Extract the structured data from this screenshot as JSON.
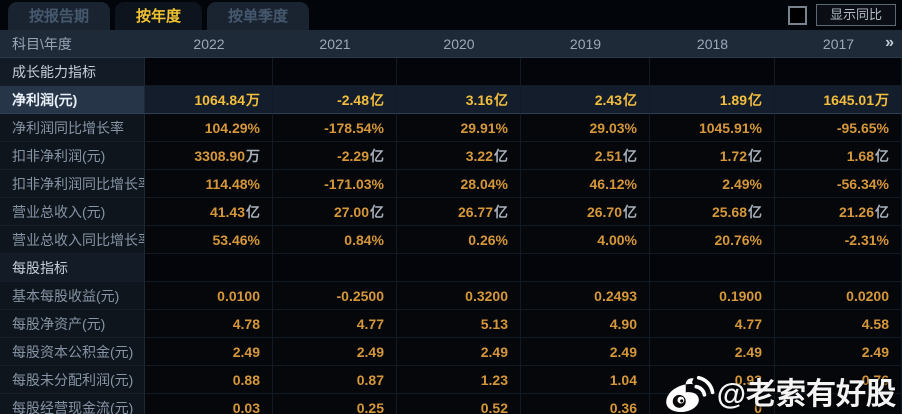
{
  "tabs": [
    {
      "name": "by-report-period",
      "label": "按报告期",
      "active": false
    },
    {
      "name": "by-year",
      "label": "按年度",
      "active": true
    },
    {
      "name": "by-quarter",
      "label": "按单季度",
      "active": false
    }
  ],
  "controls": {
    "checkbox_checked": false,
    "toggle_label": "显示同比"
  },
  "table": {
    "corner_label": "科目\\年度",
    "years": [
      "2022",
      "2021",
      "2020",
      "2019",
      "2018",
      "2017"
    ],
    "pager_icon": "»",
    "rows": [
      {
        "type": "section",
        "label": "成长能力指标",
        "values": [
          "",
          "",
          "",
          "",
          "",
          ""
        ]
      },
      {
        "type": "data",
        "highlight": true,
        "label": "净利润(元)",
        "values": [
          "1064.84万",
          "-2.48亿",
          "3.16亿",
          "2.43亿",
          "1.89亿",
          "1645.01万"
        ]
      },
      {
        "type": "data",
        "label": "净利润同比增长率",
        "values": [
          "104.29%",
          "-178.54%",
          "29.91%",
          "29.03%",
          "1045.91%",
          "-95.65%"
        ]
      },
      {
        "type": "data",
        "label": "扣非净利润(元)",
        "values": [
          "3308.90万",
          "-2.29亿",
          "3.22亿",
          "2.51亿",
          "1.72亿",
          "1.68亿"
        ]
      },
      {
        "type": "data",
        "label": "扣非净利润同比增长率",
        "values": [
          "114.48%",
          "-171.03%",
          "28.04%",
          "46.12%",
          "2.49%",
          "-56.34%"
        ]
      },
      {
        "type": "data",
        "label": "营业总收入(元)",
        "values": [
          "41.43亿",
          "27.00亿",
          "26.77亿",
          "26.70亿",
          "25.68亿",
          "21.26亿"
        ]
      },
      {
        "type": "data",
        "label": "营业总收入同比增长率",
        "values": [
          "53.46%",
          "0.84%",
          "0.26%",
          "4.00%",
          "20.76%",
          "-2.31%"
        ]
      },
      {
        "type": "section",
        "label": "每股指标",
        "values": [
          "",
          "",
          "",
          "",
          "",
          ""
        ]
      },
      {
        "type": "data",
        "label": "基本每股收益(元)",
        "values": [
          "0.0100",
          "-0.2500",
          "0.3200",
          "0.2493",
          "0.1900",
          "0.0200"
        ]
      },
      {
        "type": "data",
        "label": "每股净资产(元)",
        "values": [
          "4.78",
          "4.77",
          "5.13",
          "4.90",
          "4.77",
          "4.58"
        ]
      },
      {
        "type": "data",
        "label": "每股资本公积金(元)",
        "values": [
          "2.49",
          "2.49",
          "2.49",
          "2.49",
          "2.49",
          "2.49"
        ]
      },
      {
        "type": "data",
        "label": "每股未分配利润(元)",
        "values": [
          "0.88",
          "0.87",
          "1.23",
          "1.04",
          "0.93",
          "0.76"
        ]
      },
      {
        "type": "data",
        "label": "每股经营现金流(元)",
        "values": [
          "0.03",
          "0.25",
          "0.52",
          "0.36",
          "0",
          ""
        ]
      }
    ]
  },
  "watermark": {
    "icon": "weibo-icon",
    "text": "@老索有好股"
  },
  "colors": {
    "active_tab_text": "#f0c232",
    "inactive_tab_text": "#45586e",
    "header_bg": "#1e2a38",
    "value_orange": "#d6973a",
    "highlight_gold": "#f3be3e",
    "highlight_row_bg": "#273548",
    "unit_gray": "#a8b0bb"
  }
}
